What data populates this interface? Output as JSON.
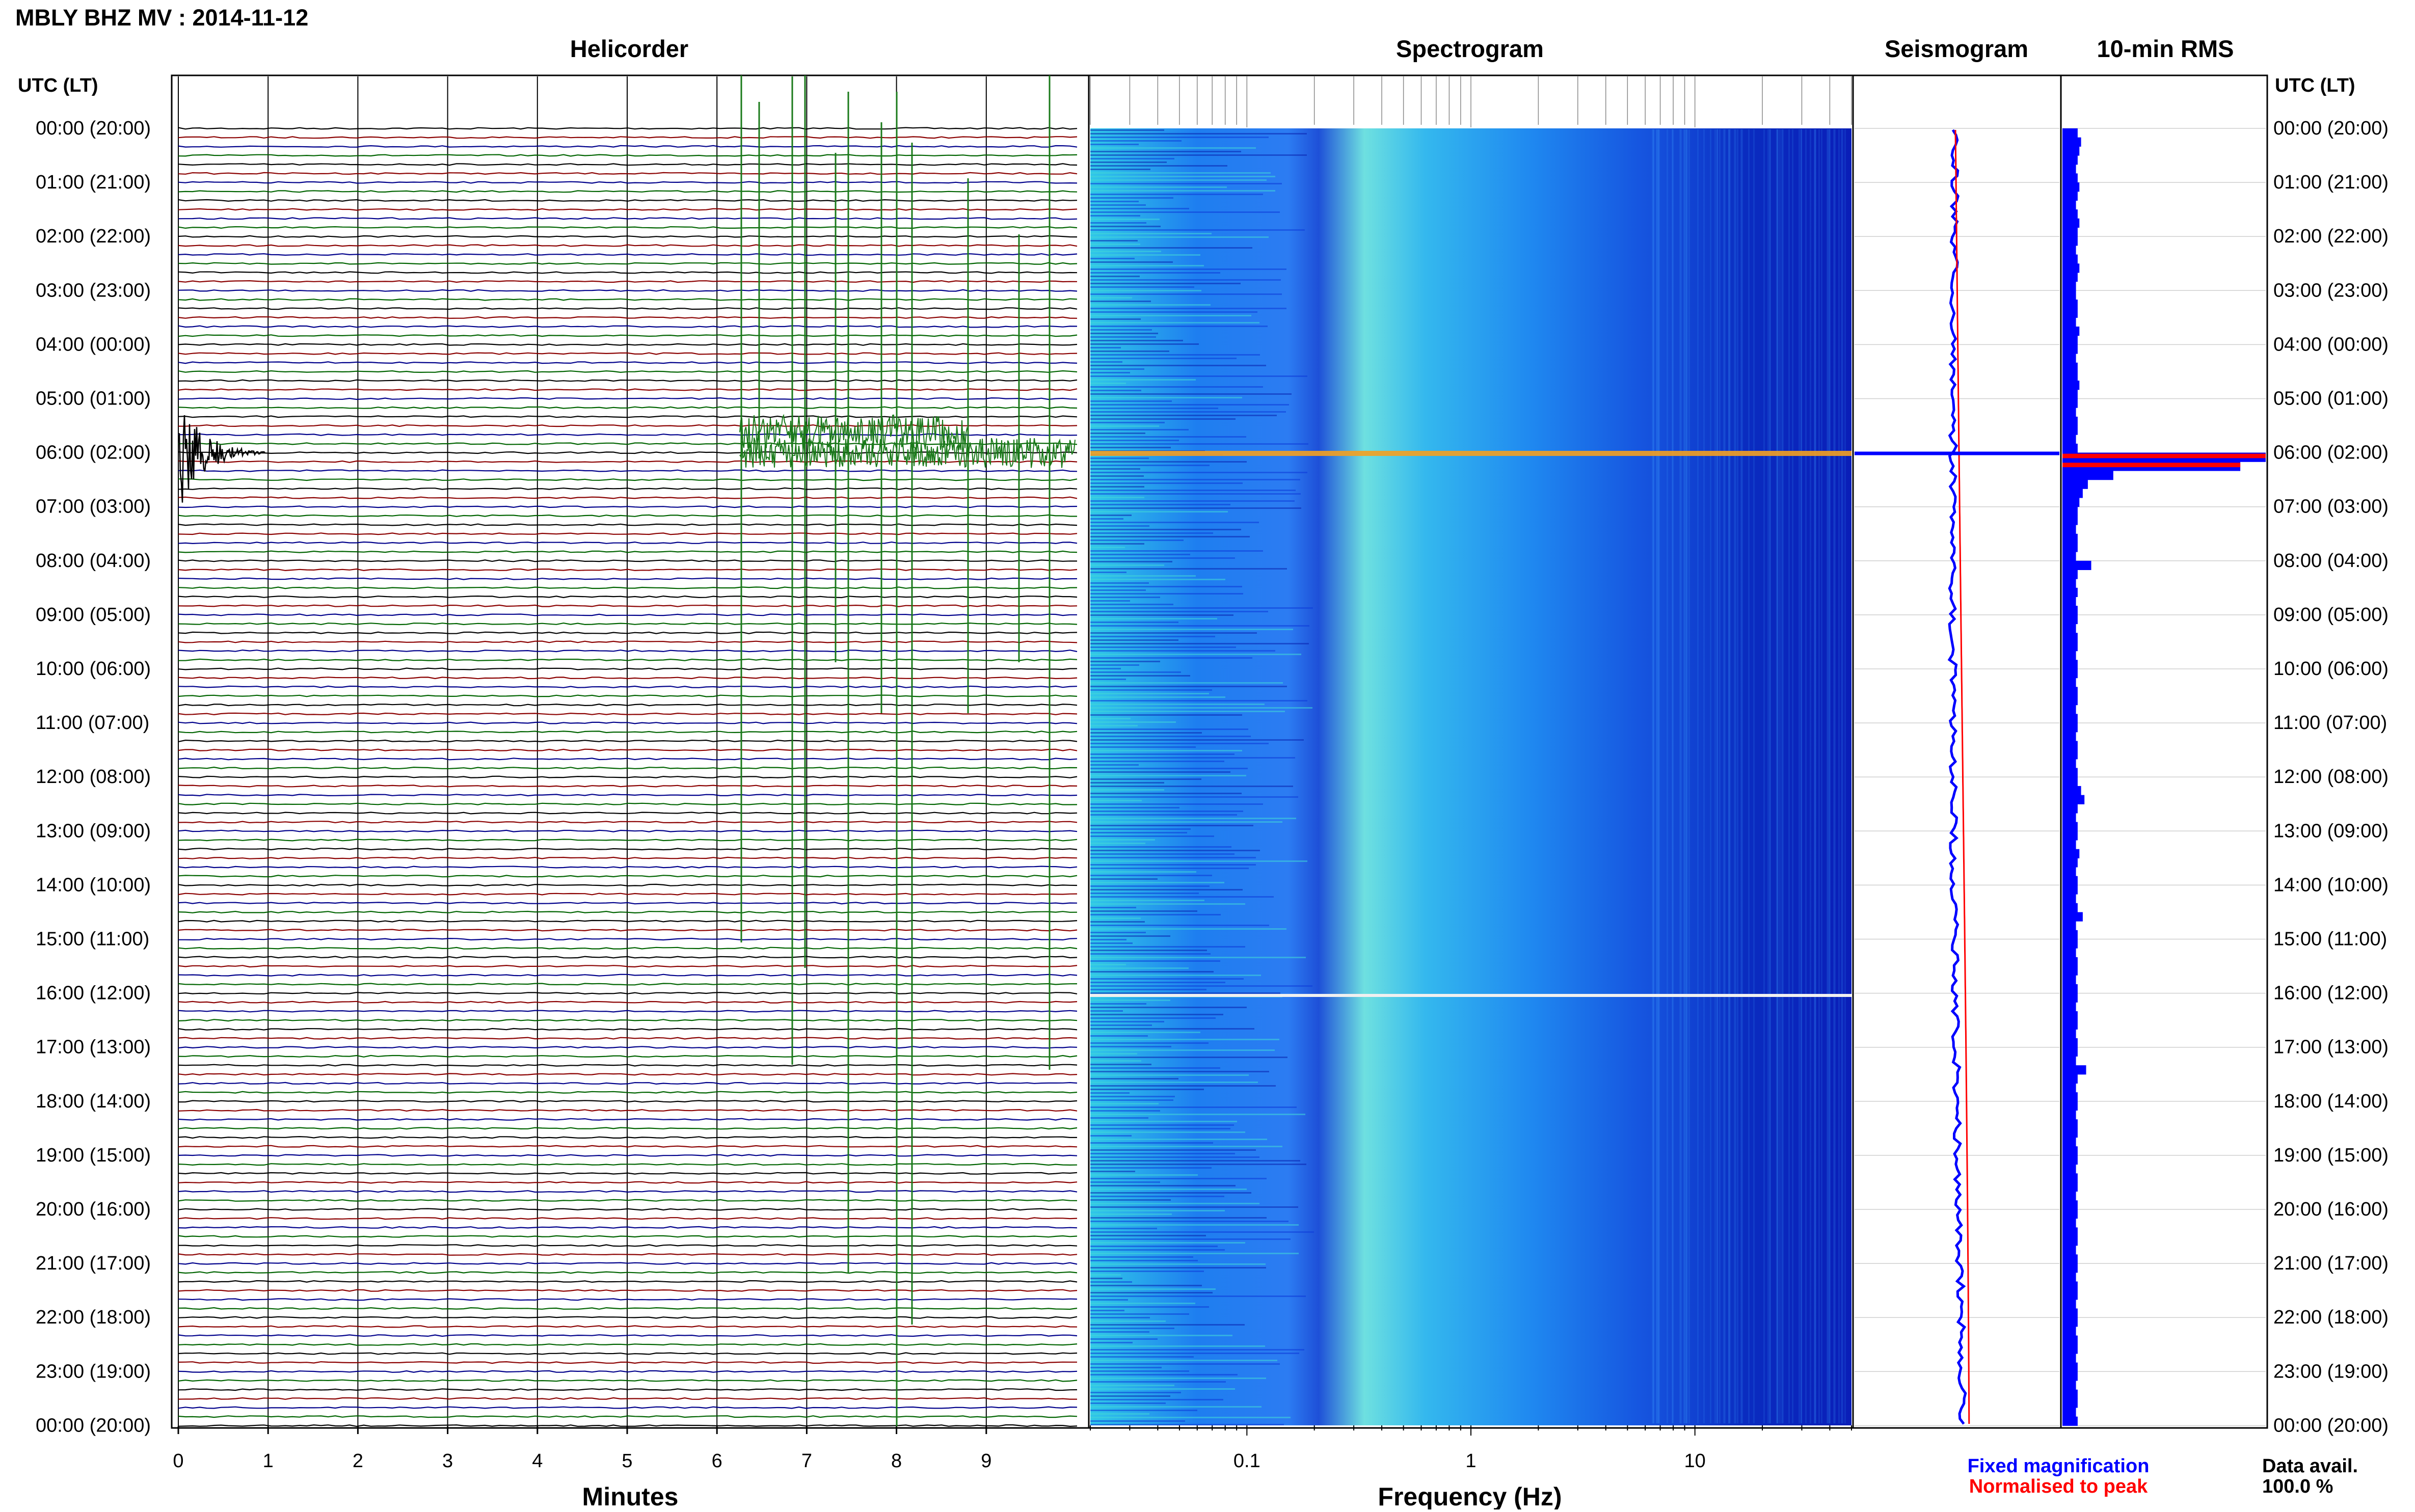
{
  "header": {
    "title": "MBLY BHZ MV : 2014-11-12",
    "utc_label_left": "UTC (LT)",
    "utc_label_right": "UTC (LT)"
  },
  "panels": {
    "helicorder": "Helicorder",
    "spectrogram": "Spectrogram",
    "seismogram": "Seismogram",
    "rms": "10-min RMS"
  },
  "axes": {
    "minutes_label": "Minutes",
    "frequency_label": "Frequency (Hz)",
    "minute_ticks": [
      "0",
      "1",
      "2",
      "3",
      "4",
      "5",
      "6",
      "7",
      "8",
      "9"
    ],
    "frequency_ticks": [
      "0.1",
      "1",
      "10"
    ]
  },
  "legend": {
    "fixed": "Fixed magnification",
    "normalised": "Normalised to peak",
    "fixed_color": "#0000ff",
    "normalised_color": "#ff0000"
  },
  "data_avail": {
    "label": "Data avail.",
    "value": "100.0 %"
  },
  "colors": {
    "trace_black": "#000000",
    "trace_red": "#8b0000",
    "trace_blue": "#00008b",
    "trace_green": "#006400",
    "spec_low": "#00008b",
    "spec_mid": "#1e90ff",
    "spec_high": "#40e0d0",
    "rms_fixed": "#0000ff",
    "rms_norm": "#ff0000"
  },
  "chart_data": {
    "type": "heatmap",
    "title": "MBLY BHZ MV : 2014-11-12",
    "xlabel": "Minutes",
    "xlim": [
      0,
      10
    ],
    "time_labels": [
      "00:00 (20:00)",
      "01:00 (21:00)",
      "02:00 (22:00)",
      "03:00 (23:00)",
      "04:00 (00:00)",
      "05:00 (01:00)",
      "06:00 (02:00)",
      "07:00 (03:00)",
      "08:00 (04:00)",
      "09:00 (05:00)",
      "10:00 (06:00)",
      "11:00 (07:00)",
      "12:00 (08:00)",
      "13:00 (09:00)",
      "14:00 (10:00)",
      "15:00 (11:00)",
      "16:00 (12:00)",
      "17:00 (13:00)",
      "18:00 (14:00)",
      "19:00 (15:00)",
      "20:00 (16:00)",
      "21:00 (17:00)",
      "22:00 (18:00)",
      "23:00 (19:00)",
      "00:00 (20:00)"
    ],
    "spectrogram_xlabel": "Frequency (Hz)",
    "spectrogram_xlim_hz": [
      0.02,
      50
    ],
    "spectrogram_scale": "log",
    "events": [
      {
        "hour": 6,
        "minute": 0.2,
        "type": "large earthquake"
      },
      {
        "hour": 6,
        "minute": 6.3,
        "type": "long-period event series"
      }
    ],
    "rms_10min": [
      0.9,
      1.1,
      1.0,
      0.9,
      0.8,
      0.9,
      1.0,
      0.9,
      0.8,
      0.9,
      1.0,
      0.9,
      0.9,
      0.8,
      0.9,
      1.0,
      0.9,
      0.8,
      0.8,
      0.9,
      0.9,
      0.8,
      1.0,
      0.9,
      0.9,
      0.8,
      0.9,
      0.9,
      1.0,
      0.9,
      0.9,
      0.8,
      0.9,
      0.9,
      0.8,
      0.9,
      12.0,
      10.5,
      3.0,
      1.5,
      1.2,
      1.0,
      0.9,
      0.9,
      0.8,
      0.9,
      0.9,
      0.8,
      1.7,
      0.9,
      0.8,
      0.9,
      0.8,
      0.9,
      0.9,
      0.8,
      0.9,
      0.9,
      0.8,
      0.9,
      0.9,
      0.8,
      0.9,
      0.9,
      0.8,
      0.9,
      0.9,
      0.8,
      0.9,
      0.9,
      0.8,
      0.9,
      0.9,
      1.1,
      1.3,
      0.9,
      0.8,
      0.9,
      0.9,
      0.8,
      1.0,
      0.9,
      0.8,
      0.9,
      0.9,
      0.8,
      0.9,
      1.2,
      0.8,
      0.9,
      0.9,
      0.8,
      0.9,
      0.9,
      0.8,
      0.9,
      0.9,
      0.8,
      0.9,
      0.9,
      0.8,
      0.9,
      0.9,
      0.8,
      1.4,
      0.9,
      0.8,
      0.9,
      0.9,
      0.8,
      0.9,
      0.9,
      0.8,
      0.9,
      0.9,
      0.8,
      0.9,
      0.9,
      0.8,
      0.9,
      0.9,
      0.8,
      0.9,
      0.9,
      0.8,
      0.9,
      0.9,
      0.8,
      0.9,
      0.9,
      0.8,
      0.9,
      0.9,
      0.8,
      0.9,
      0.9,
      0.8,
      0.9,
      0.9,
      0.8,
      0.9,
      0.9,
      0.8,
      0.9
    ],
    "grid": true,
    "legend_placement": "bottom-right"
  }
}
